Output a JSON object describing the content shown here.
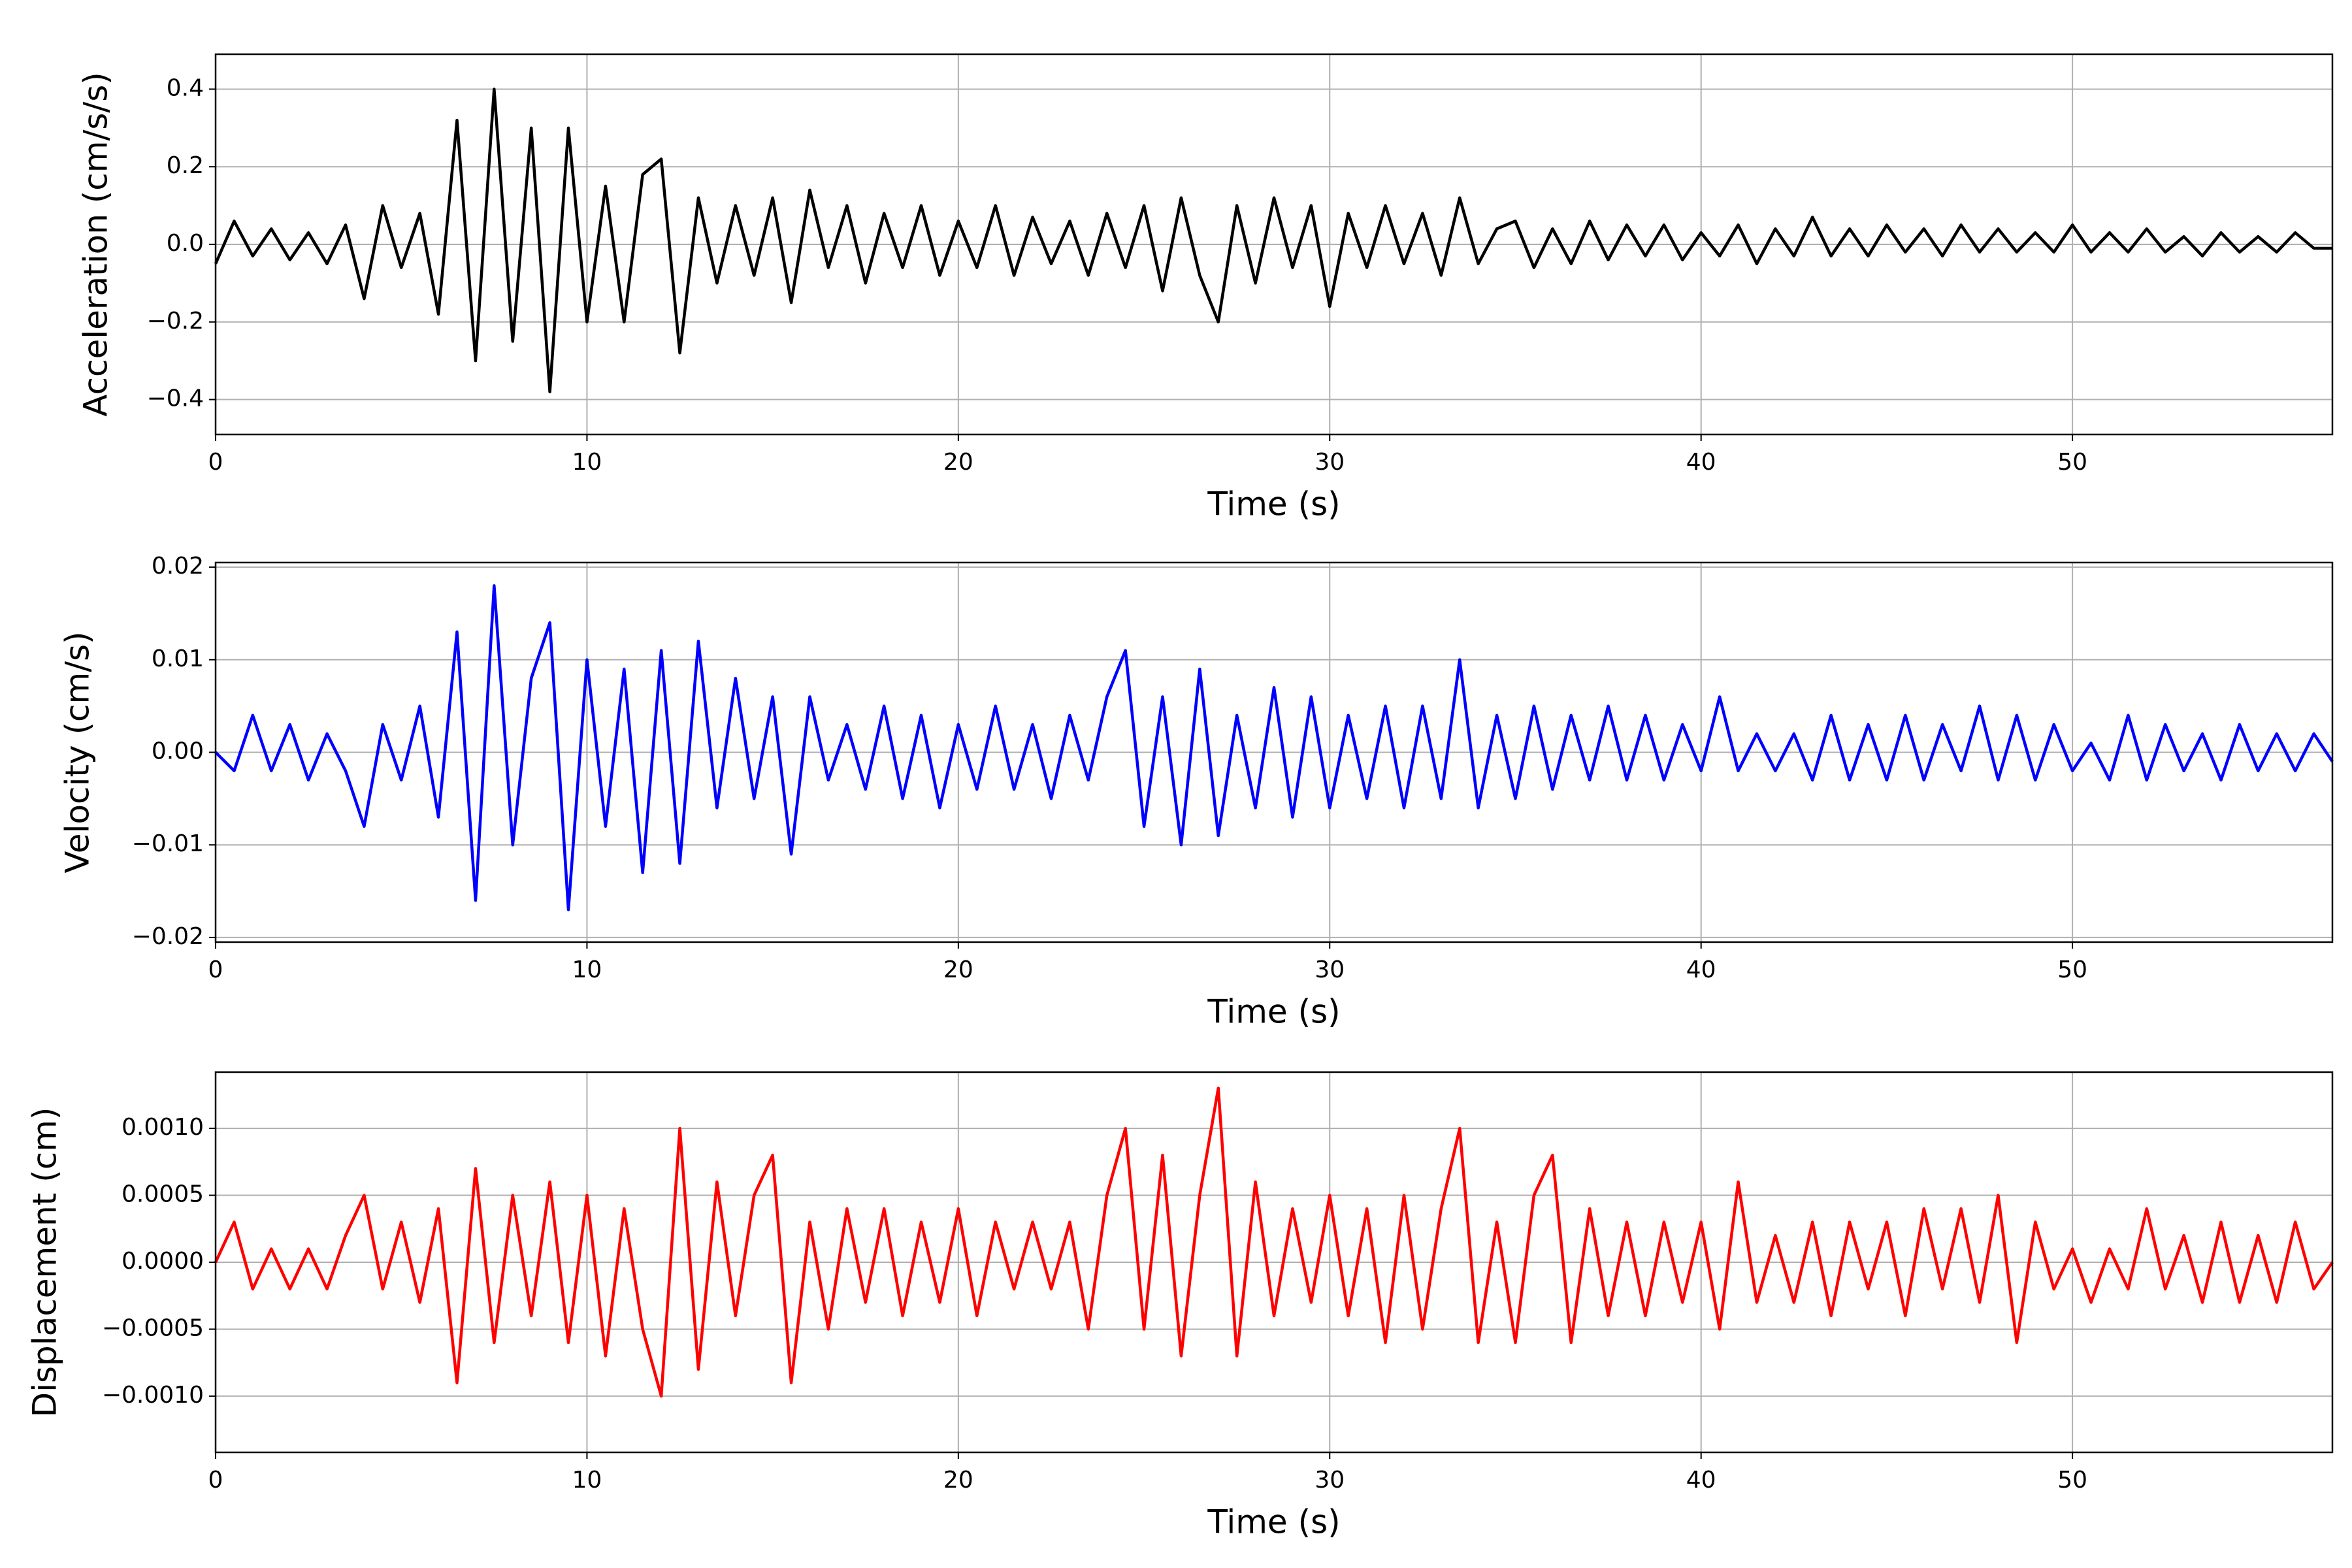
{
  "chart_data": [
    {
      "type": "line",
      "ylabel": "Acceleration (cm/s/s)",
      "xlabel": "Time (s)",
      "xlim": [
        0,
        57
      ],
      "xticks": [
        0,
        10,
        20,
        30,
        40,
        50
      ],
      "ylim": [
        -0.49,
        0.49
      ],
      "yticks": [
        {
          "value": -0.4,
          "label": "−0.4"
        },
        {
          "value": -0.2,
          "label": "−0.2"
        },
        {
          "value": 0,
          "label": "0.0"
        },
        0.2,
        0.4
      ],
      "grid": true,
      "x": [
        0,
        0.5,
        1,
        1.5,
        2,
        2.5,
        3,
        3.5,
        4,
        4.5,
        5,
        5.5,
        6,
        6.5,
        7,
        7.5,
        8,
        8.5,
        9,
        9.5,
        10,
        10.5,
        11,
        11.5,
        12,
        12.5,
        13,
        13.5,
        14,
        14.5,
        15,
        15.5,
        16,
        16.5,
        17,
        17.5,
        18,
        18.5,
        19,
        19.5,
        20,
        20.5,
        21,
        21.5,
        22,
        22.5,
        23,
        23.5,
        24,
        24.5,
        25,
        25.5,
        26,
        26.5,
        27,
        27.5,
        28,
        28.5,
        29,
        29.5,
        30,
        30.5,
        31,
        31.5,
        32,
        32.5,
        33,
        33.5,
        34,
        34.5,
        35,
        35.5,
        36,
        36.5,
        37,
        37.5,
        38,
        38.5,
        39,
        39.5,
        40,
        40.5,
        41,
        41.5,
        42,
        42.5,
        43,
        43.5,
        44,
        44.5,
        45,
        45.5,
        46,
        46.5,
        47,
        47.5,
        48,
        48.5,
        49,
        49.5,
        50,
        50.5,
        51,
        51.5,
        52,
        52.5,
        53,
        53.5,
        54,
        54.5,
        55,
        55.5,
        56,
        56.5,
        57
      ],
      "series": [
        {
          "color": "#000000",
          "values": [
            -0.05,
            0.06,
            -0.03,
            0.04,
            -0.04,
            0.03,
            -0.05,
            0.05,
            -0.14,
            0.1,
            -0.06,
            0.08,
            -0.18,
            0.32,
            -0.3,
            0.4,
            -0.25,
            0.3,
            -0.38,
            0.3,
            -0.2,
            0.15,
            -0.2,
            0.18,
            0.22,
            -0.28,
            0.12,
            -0.1,
            0.1,
            -0.08,
            0.12,
            -0.15,
            0.14,
            -0.06,
            0.1,
            -0.1,
            0.08,
            -0.06,
            0.1,
            -0.08,
            0.06,
            -0.06,
            0.1,
            -0.08,
            0.07,
            -0.05,
            0.06,
            -0.08,
            0.08,
            -0.06,
            0.1,
            -0.12,
            0.12,
            -0.08,
            -0.2,
            0.1,
            -0.1,
            0.12,
            -0.06,
            0.1,
            -0.16,
            0.08,
            -0.06,
            0.1,
            -0.05,
            0.08,
            -0.08,
            0.12,
            -0.05,
            0.04,
            0.06,
            -0.06,
            0.04,
            -0.05,
            0.06,
            -0.04,
            0.05,
            -0.03,
            0.05,
            -0.04,
            0.03,
            -0.03,
            0.05,
            -0.05,
            0.04,
            -0.03,
            0.07,
            -0.03,
            0.04,
            -0.03,
            0.05,
            -0.02,
            0.04,
            -0.03,
            0.05,
            -0.02,
            0.04,
            -0.02,
            0.03,
            -0.02,
            0.05,
            -0.02,
            0.03,
            -0.02,
            0.04,
            -0.02,
            0.02,
            -0.03,
            0.03,
            -0.02,
            0.02,
            -0.02,
            0.03,
            -0.01,
            -0.01
          ]
        }
      ]
    },
    {
      "type": "line",
      "ylabel": "Velocity (cm/s)",
      "xlabel": "Time (s)",
      "xlim": [
        0,
        57
      ],
      "xticks": [
        0,
        10,
        20,
        30,
        40,
        50
      ],
      "ylim": [
        -0.0205,
        0.0205
      ],
      "yticks": [
        {
          "value": -0.02,
          "label": "−0.02"
        },
        {
          "value": -0.01,
          "label": "−0.01"
        },
        {
          "value": 0,
          "label": "0.00"
        },
        0.01,
        0.02
      ],
      "grid": true,
      "x": [
        0,
        0.5,
        1,
        1.5,
        2,
        2.5,
        3,
        3.5,
        4,
        4.5,
        5,
        5.5,
        6,
        6.5,
        7,
        7.5,
        8,
        8.5,
        9,
        9.5,
        10,
        10.5,
        11,
        11.5,
        12,
        12.5,
        13,
        13.5,
        14,
        14.5,
        15,
        15.5,
        16,
        16.5,
        17,
        17.5,
        18,
        18.5,
        19,
        19.5,
        20,
        20.5,
        21,
        21.5,
        22,
        22.5,
        23,
        23.5,
        24,
        24.5,
        25,
        25.5,
        26,
        26.5,
        27,
        27.5,
        28,
        28.5,
        29,
        29.5,
        30,
        30.5,
        31,
        31.5,
        32,
        32.5,
        33,
        33.5,
        34,
        34.5,
        35,
        35.5,
        36,
        36.5,
        37,
        37.5,
        38,
        38.5,
        39,
        39.5,
        40,
        40.5,
        41,
        41.5,
        42,
        42.5,
        43,
        43.5,
        44,
        44.5,
        45,
        45.5,
        46,
        46.5,
        47,
        47.5,
        48,
        48.5,
        49,
        49.5,
        50,
        50.5,
        51,
        51.5,
        52,
        52.5,
        53,
        53.5,
        54,
        54.5,
        55,
        55.5,
        56,
        56.5,
        57
      ],
      "series": [
        {
          "color": "#0000ff",
          "values": [
            0,
            -0.002,
            0.004,
            -0.002,
            0.003,
            -0.003,
            0.002,
            -0.002,
            -0.008,
            0.003,
            -0.003,
            0.005,
            -0.007,
            0.013,
            -0.016,
            0.018,
            -0.01,
            0.008,
            0.014,
            -0.017,
            0.01,
            -0.008,
            0.009,
            -0.013,
            0.011,
            -0.012,
            0.012,
            -0.006,
            0.008,
            -0.005,
            0.006,
            -0.011,
            0.006,
            -0.003,
            0.003,
            -0.004,
            0.005,
            -0.005,
            0.004,
            -0.006,
            0.003,
            -0.004,
            0.005,
            -0.004,
            0.003,
            -0.005,
            0.004,
            -0.003,
            0.006,
            0.011,
            -0.008,
            0.006,
            -0.01,
            0.009,
            -0.009,
            0.004,
            -0.006,
            0.007,
            -0.007,
            0.006,
            -0.006,
            0.004,
            -0.005,
            0.005,
            -0.006,
            0.005,
            -0.005,
            0.01,
            -0.006,
            0.004,
            -0.005,
            0.005,
            -0.004,
            0.004,
            -0.003,
            0.005,
            -0.003,
            0.004,
            -0.003,
            0.003,
            -0.002,
            0.006,
            -0.002,
            0.002,
            -0.002,
            0.002,
            -0.003,
            0.004,
            -0.003,
            0.003,
            -0.003,
            0.004,
            -0.003,
            0.003,
            -0.002,
            0.005,
            -0.003,
            0.004,
            -0.003,
            0.003,
            -0.002,
            0.001,
            -0.003,
            0.004,
            -0.003,
            0.003,
            -0.002,
            0.002,
            -0.003,
            0.003,
            -0.002,
            0.002,
            -0.002,
            0.002,
            -0.001
          ]
        }
      ]
    },
    {
      "type": "line",
      "ylabel": "Displacement (cm)",
      "xlabel": "Time (s)",
      "xlim": [
        0,
        57
      ],
      "xticks": [
        0,
        10,
        20,
        30,
        40,
        50
      ],
      "ylim": [
        -0.00142,
        0.00142
      ],
      "yticks": [
        {
          "value": -0.001,
          "label": "−0.0010"
        },
        {
          "value": -0.0005,
          "label": "−0.0005"
        },
        {
          "value": 0,
          "label": "0.0000"
        },
        {
          "value": 0.0005,
          "label": "0.0005"
        },
        {
          "value": 0.001,
          "label": "0.0010"
        }
      ],
      "grid": true,
      "x": [
        0,
        0.5,
        1,
        1.5,
        2,
        2.5,
        3,
        3.5,
        4,
        4.5,
        5,
        5.5,
        6,
        6.5,
        7,
        7.5,
        8,
        8.5,
        9,
        9.5,
        10,
        10.5,
        11,
        11.5,
        12,
        12.5,
        13,
        13.5,
        14,
        14.5,
        15,
        15.5,
        16,
        16.5,
        17,
        17.5,
        18,
        18.5,
        19,
        19.5,
        20,
        20.5,
        21,
        21.5,
        22,
        22.5,
        23,
        23.5,
        24,
        24.5,
        25,
        25.5,
        26,
        26.5,
        27,
        27.5,
        28,
        28.5,
        29,
        29.5,
        30,
        30.5,
        31,
        31.5,
        32,
        32.5,
        33,
        33.5,
        34,
        34.5,
        35,
        35.5,
        36,
        36.5,
        37,
        37.5,
        38,
        38.5,
        39,
        39.5,
        40,
        40.5,
        41,
        41.5,
        42,
        42.5,
        43,
        43.5,
        44,
        44.5,
        45,
        45.5,
        46,
        46.5,
        47,
        47.5,
        48,
        48.5,
        49,
        49.5,
        50,
        50.5,
        51,
        51.5,
        52,
        52.5,
        53,
        53.5,
        54,
        54.5,
        55,
        55.5,
        56,
        56.5,
        57
      ],
      "series": [
        {
          "color": "#ff0000",
          "values": [
            0,
            0.0003,
            -0.0002,
            0.0001,
            -0.0002,
            0.0001,
            -0.0002,
            0.0002,
            0.0005,
            -0.0002,
            0.0003,
            -0.0003,
            0.0004,
            -0.0009,
            0.0007,
            -0.0006,
            0.0005,
            -0.0004,
            0.0006,
            -0.0006,
            0.0005,
            -0.0007,
            0.0004,
            -0.0005,
            -0.001,
            0.001,
            -0.0008,
            0.0006,
            -0.0004,
            0.0005,
            0.0008,
            -0.0009,
            0.0003,
            -0.0005,
            0.0004,
            -0.0003,
            0.0004,
            -0.0004,
            0.0003,
            -0.0003,
            0.0004,
            -0.0004,
            0.0003,
            -0.0002,
            0.0003,
            -0.0002,
            0.0003,
            -0.0005,
            0.0005,
            0.001,
            -0.0005,
            0.0008,
            -0.0007,
            0.0005,
            0.0013,
            -0.0007,
            0.0006,
            -0.0004,
            0.0004,
            -0.0003,
            0.0005,
            -0.0004,
            0.0004,
            -0.0006,
            0.0005,
            -0.0005,
            0.0004,
            0.001,
            -0.0006,
            0.0003,
            -0.0006,
            0.0005,
            0.0008,
            -0.0006,
            0.0004,
            -0.0004,
            0.0003,
            -0.0004,
            0.0003,
            -0.0003,
            0.0003,
            -0.0005,
            0.0006,
            -0.0003,
            0.0002,
            -0.0003,
            0.0003,
            -0.0004,
            0.0003,
            -0.0002,
            0.0003,
            -0.0004,
            0.0004,
            -0.0002,
            0.0004,
            -0.0003,
            0.0005,
            -0.0006,
            0.0003,
            -0.0002,
            0.0001,
            -0.0003,
            0.0001,
            -0.0002,
            0.0004,
            -0.0002,
            0.0002,
            -0.0003,
            0.0003,
            -0.0003,
            0.0002,
            -0.0003,
            0.0003,
            -0.0002,
            0
          ]
        }
      ]
    }
  ]
}
